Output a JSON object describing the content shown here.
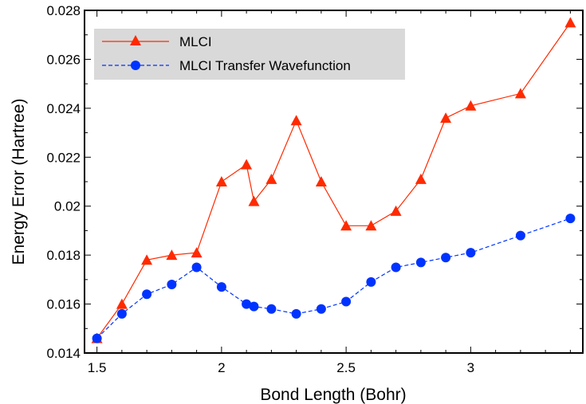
{
  "chart_data": {
    "type": "line",
    "xlabel": "Bond Length (Bohr)",
    "ylabel": "Energy Error (Hartree)",
    "xlim": [
      1.45,
      3.45
    ],
    "ylim": [
      0.014,
      0.028
    ],
    "xticks": [
      1.5,
      2,
      2.5,
      3
    ],
    "xtick_labels": [
      "1.5",
      "2",
      "2.5",
      "3"
    ],
    "yticks": [
      0.014,
      0.016,
      0.018,
      0.02,
      0.022,
      0.024,
      0.026,
      0.028
    ],
    "ytick_labels": [
      "0.014",
      "0.016",
      "0.018",
      "0.02",
      "0.022",
      "0.024",
      "0.026",
      "0.028"
    ],
    "legend_position": "top-left",
    "series": [
      {
        "name": "MLCI",
        "color": "#ff2a00",
        "marker": "triangle",
        "line": "solid",
        "x": [
          1.5,
          1.6,
          1.7,
          1.8,
          1.9,
          2.0,
          2.1,
          2.13,
          2.2,
          2.3,
          2.4,
          2.5,
          2.6,
          2.7,
          2.8,
          2.9,
          3.0,
          3.2,
          3.4
        ],
        "y": [
          0.0146,
          0.016,
          0.0178,
          0.018,
          0.0181,
          0.021,
          0.0217,
          0.0202,
          0.0211,
          0.0235,
          0.021,
          0.0192,
          0.0192,
          0.0198,
          0.0211,
          0.0236,
          0.0241,
          0.0246,
          0.0275
        ]
      },
      {
        "name": "MLCI Transfer Wavefunction",
        "color": "#0033ff",
        "marker": "circle",
        "line": "dashed",
        "x": [
          1.5,
          1.6,
          1.7,
          1.8,
          1.9,
          2.0,
          2.1,
          2.13,
          2.2,
          2.3,
          2.4,
          2.5,
          2.6,
          2.7,
          2.8,
          2.9,
          3.0,
          3.2,
          3.4
        ],
        "y": [
          0.0146,
          0.0156,
          0.0164,
          0.0168,
          0.0175,
          0.0167,
          0.016,
          0.0159,
          0.0158,
          0.0156,
          0.0158,
          0.0161,
          0.0169,
          0.0175,
          0.0177,
          0.0179,
          0.0181,
          0.0188,
          0.0195
        ]
      }
    ]
  }
}
